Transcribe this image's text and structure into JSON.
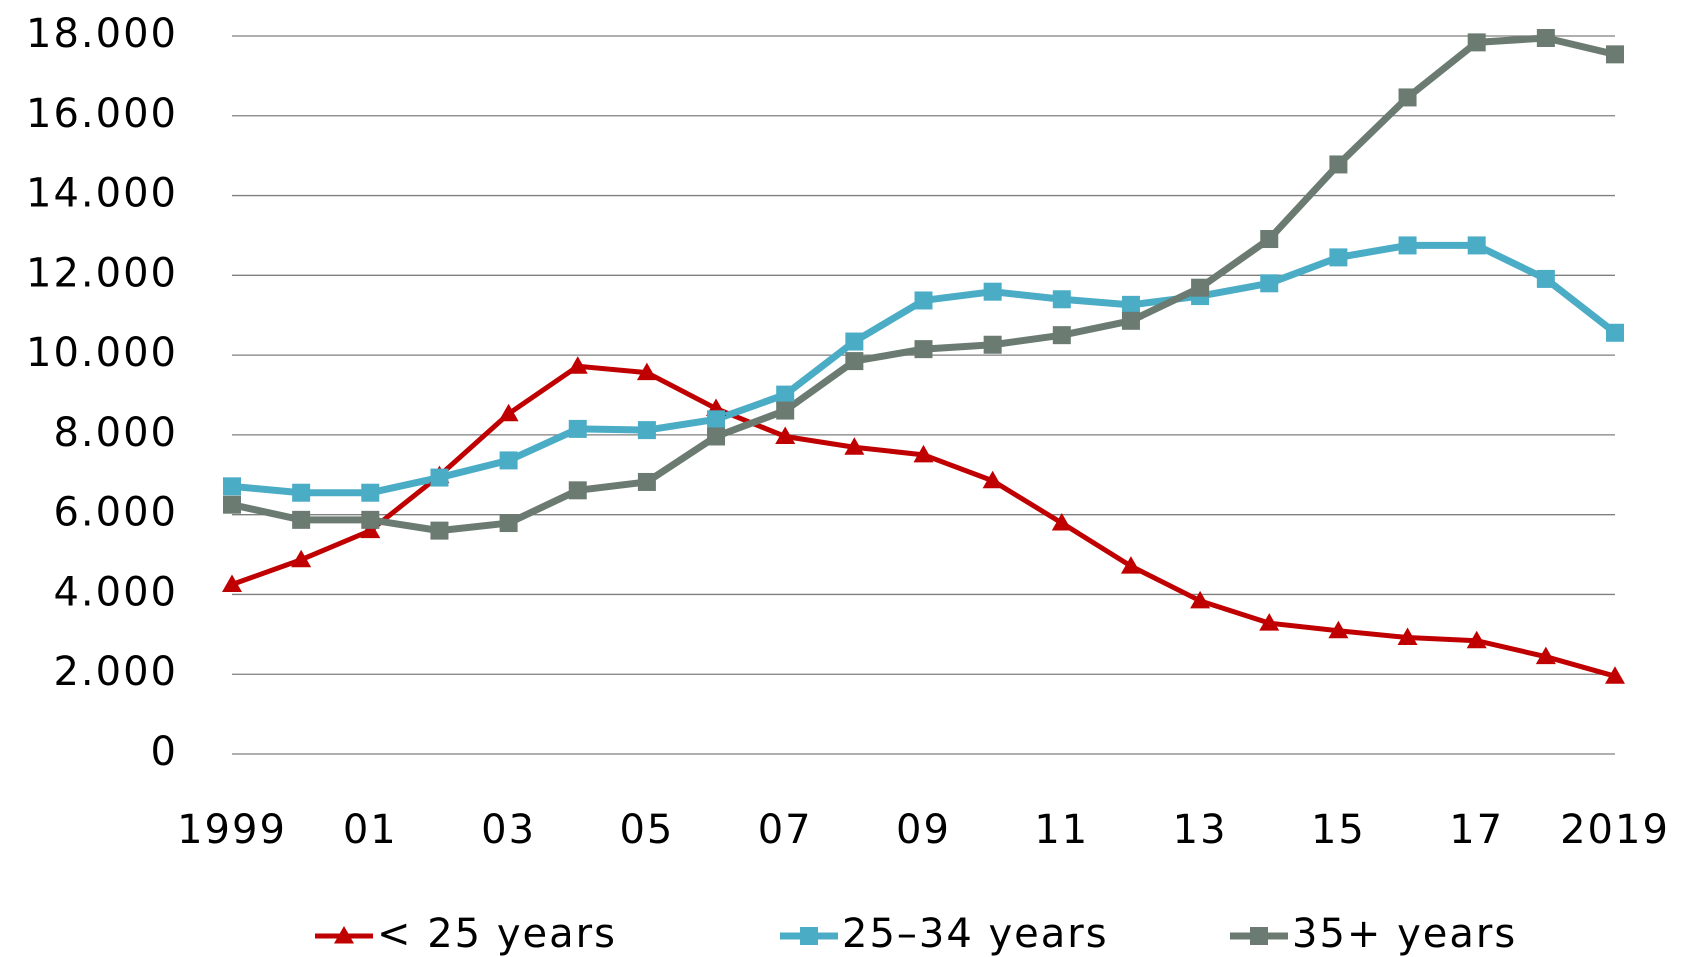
{
  "chart_data": {
    "type": "line",
    "categories": [
      "1999",
      null,
      "01",
      null,
      "03",
      null,
      "05",
      null,
      "07",
      null,
      "09",
      null,
      "11",
      null,
      "13",
      null,
      "15",
      null,
      "17",
      null,
      "2019"
    ],
    "series": [
      {
        "name": "< 25 years",
        "color": "#c00000",
        "marker": "triangle",
        "values": [
          4250,
          4870,
          5600,
          6980,
          8530,
          9720,
          9560,
          8660,
          7960,
          7690,
          7500,
          6850,
          5790,
          4710,
          3840,
          3280,
          3090,
          2920,
          2840,
          2440,
          1950
        ]
      },
      {
        "name": "25–34 years",
        "color": "#4bacc6",
        "marker": "square",
        "values": [
          6710,
          6550,
          6550,
          6930,
          7360,
          8150,
          8120,
          8390,
          9010,
          10340,
          11370,
          11590,
          11400,
          11260,
          11480,
          11800,
          12450,
          12750,
          12750,
          11910,
          10560
        ]
      },
      {
        "name": "35+ years",
        "color": "#6b7b72",
        "marker": "square",
        "values": [
          6250,
          5870,
          5870,
          5600,
          5790,
          6610,
          6820,
          7960,
          8610,
          9850,
          10150,
          10260,
          10500,
          10860,
          11690,
          12910,
          14780,
          16460,
          17840,
          17950,
          17540
        ]
      }
    ],
    "ylim": [
      0,
      18000
    ],
    "yticks": [
      0,
      {
        "value": 2000,
        "label": "2.000"
      },
      {
        "value": 4000,
        "label": "4.000"
      },
      {
        "value": 6000,
        "label": "6.000"
      },
      {
        "value": 8000,
        "label": "8.000"
      },
      {
        "value": 10000,
        "label": "10.000"
      },
      {
        "value": 12000,
        "label": "12.000"
      },
      {
        "value": 14000,
        "label": "14.000"
      },
      {
        "value": 16000,
        "label": "16.000"
      },
      {
        "value": 18000,
        "label": "18.000"
      }
    ],
    "grid": true,
    "legend": "bottom"
  }
}
